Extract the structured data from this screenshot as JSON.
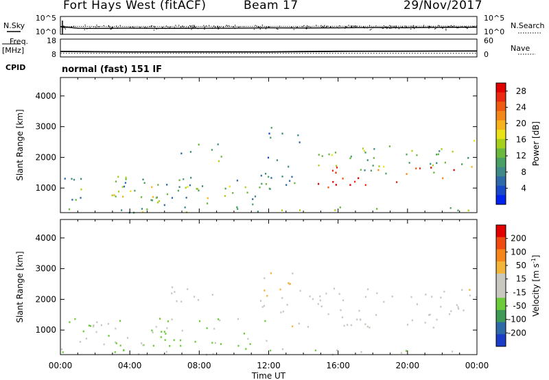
{
  "header": {
    "station": "Fort Hays West (fitACF)",
    "beam": "Beam 17",
    "date": "29/Nov/2017"
  },
  "left_labels": {
    "nsky": "N.Sky",
    "freq": "Freq.",
    "freq_unit": "[MHz]",
    "cpid": "CPID"
  },
  "right_labels": {
    "nsearch": "N.Search",
    "nave": "Nave"
  },
  "cpid_text": "normal (fast) 151 IF",
  "colors": {
    "power_scale": [
      "#0022ee",
      "#1a49c8",
      "#2f6aa8",
      "#3f8a86",
      "#4aa064",
      "#6ab83e",
      "#a6cf1c",
      "#e9e21a",
      "#f5b21a",
      "#f3871a",
      "#ef5a12",
      "#ea2a10",
      "#e10000"
    ],
    "velocity_scale": [
      "#e00000",
      "#f04a10",
      "#f7861a",
      "#f2b43a",
      "#c8c8c0",
      "#c8c8c0",
      "#6ccb3a",
      "#3e9a55",
      "#2f6aa8",
      "#1a3cc8"
    ]
  },
  "chart_data": [
    {
      "panel": "noise",
      "type": "line",
      "title": "",
      "y_left_ticks": [
        "10^5",
        "10^0"
      ],
      "y_right_ticks": [
        "10^5",
        "10^0"
      ],
      "series": [
        {
          "name": "N.Sky",
          "x": [
            0,
            1,
            2,
            3,
            4,
            6,
            8,
            10,
            12,
            14,
            16,
            18,
            20,
            22,
            24
          ],
          "values": [
            100,
            30,
            25,
            28,
            30,
            27,
            28,
            30,
            40,
            35,
            40,
            50,
            45,
            60,
            70
          ]
        },
        {
          "name": "N.Search",
          "x": [
            0,
            2,
            4,
            8,
            12,
            16,
            20,
            24
          ],
          "values": [
            150,
            120,
            110,
            120,
            140,
            150,
            160,
            180
          ]
        }
      ]
    },
    {
      "panel": "frequency",
      "type": "line",
      "y_left_ticks": [
        "18",
        "8"
      ],
      "y_right_ticks": [
        "60",
        "0"
      ],
      "series": [
        {
          "name": "Freq.",
          "x": [
            0,
            2,
            4,
            8,
            12,
            14,
            16,
            20,
            24
          ],
          "values": [
            10.5,
            10.3,
            10.2,
            10.2,
            10.2,
            10.4,
            10.6,
            10.7,
            10.8
          ]
        },
        {
          "name": "Nave",
          "x": [
            0,
            6,
            12,
            18,
            24
          ],
          "values": [
            10,
            10,
            10,
            10,
            10
          ]
        }
      ]
    },
    {
      "panel": "power",
      "type": "heatmap",
      "ylabel": "Slant Range [km]",
      "y_ticks": [
        "1000",
        "2000",
        "3000",
        "4000"
      ],
      "ylim": [
        200,
        4600
      ],
      "xlim": [
        0,
        24
      ],
      "colorbar": {
        "label": "Power [dB]",
        "ticks": [
          "4",
          "8",
          "12",
          "16",
          "20",
          "24",
          "28"
        ],
        "range": [
          0,
          30
        ]
      },
      "regions": [
        {
          "t0": 0,
          "t1": 24,
          "r0": 220,
          "r1": 420,
          "value": 12
        },
        {
          "t0": 0.2,
          "t1": 12.5,
          "r0": 450,
          "r1": 1400,
          "value": 10
        },
        {
          "t0": 3,
          "t1": 10,
          "r0": 700,
          "r1": 1100,
          "value": 16
        },
        {
          "t0": 7.5,
          "t1": 9.0,
          "r0": 700,
          "r1": 850,
          "value": 22
        },
        {
          "t0": 6,
          "t1": 9.5,
          "r0": 1900,
          "r1": 2500,
          "value": 10
        },
        {
          "t0": 11.5,
          "t1": 13.8,
          "r0": 1100,
          "r1": 3000,
          "value": 8
        },
        {
          "t0": 14.2,
          "t1": 23.5,
          "r0": 1500,
          "r1": 2400,
          "value": 12
        },
        {
          "t0": 14.5,
          "t1": 22.8,
          "r0": 1050,
          "r1": 1700,
          "value": 27
        },
        {
          "t0": 23.5,
          "t1": 24,
          "r0": 1700,
          "r1": 2600,
          "value": 17
        }
      ]
    },
    {
      "panel": "velocity",
      "type": "heatmap",
      "xlabel": "Time UT",
      "ylabel": "Slant Range [km]",
      "x_ticks": [
        "00:00",
        "04:00",
        "08:00",
        "12:00",
        "16:00",
        "20:00",
        "00:00"
      ],
      "y_ticks": [
        "1000",
        "2000",
        "3000",
        "4000"
      ],
      "ylim": [
        200,
        4600
      ],
      "xlim": [
        0,
        24
      ],
      "colorbar": {
        "label": "Velocity [m s",
        "ticks": [
          "200",
          "100",
          "50",
          "15",
          "-15",
          "-50",
          "-100",
          "-200"
        ],
        "range": [
          -250,
          250
        ]
      },
      "regions": [
        {
          "t0": 0,
          "t1": 24,
          "r0": 220,
          "r1": 420,
          "value": -40
        },
        {
          "t0": 0.2,
          "t1": 12.5,
          "r0": 500,
          "r1": 1400,
          "value": -60
        },
        {
          "t0": 0.5,
          "t1": 3,
          "r0": 900,
          "r1": 1400,
          "value": 0
        },
        {
          "t0": 6,
          "t1": 9.5,
          "r0": 1900,
          "r1": 2500,
          "value": 0
        },
        {
          "t0": 11.5,
          "t1": 13.8,
          "r0": 1100,
          "r1": 3000,
          "value": 40
        },
        {
          "t0": 14.2,
          "t1": 23.5,
          "r0": 1050,
          "r1": 2400,
          "value": 0
        },
        {
          "t0": 23.5,
          "t1": 24,
          "r0": 1700,
          "r1": 2600,
          "value": 30
        }
      ]
    }
  ]
}
